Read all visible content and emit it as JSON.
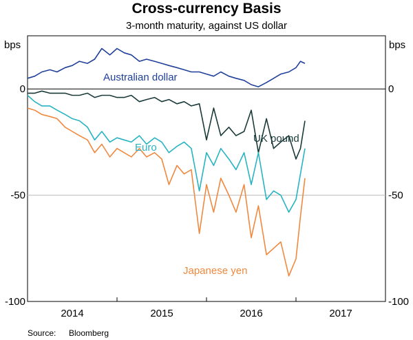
{
  "chart_data": {
    "type": "line",
    "title": "Cross-currency Basis",
    "subtitle": "3-month maturity, against US dollar",
    "ylabel_left": "bps",
    "ylabel_right": "bps",
    "ylim": [
      -100,
      25
    ],
    "yticks": [
      0,
      -50,
      -100
    ],
    "xlim": [
      2013.5,
      2017.5
    ],
    "xticks": [
      "2014",
      "2015",
      "2016",
      "2017"
    ],
    "grid": "horizontal",
    "source_label": "Source:",
    "source": "Bloomberg",
    "series": [
      {
        "name": "Australian dollar",
        "color": "#1f3f9a",
        "x": [
          2013.5,
          2013.58,
          2013.66,
          2013.75,
          2013.83,
          2013.92,
          2014.0,
          2014.08,
          2014.17,
          2014.25,
          2014.33,
          2014.42,
          2014.5,
          2014.58,
          2014.66,
          2014.75,
          2014.83,
          2014.92,
          2015.0,
          2015.08,
          2015.17,
          2015.25,
          2015.33,
          2015.42,
          2015.5,
          2015.58,
          2015.66,
          2015.75,
          2015.83,
          2015.92,
          2016.0,
          2016.08,
          2016.17,
          2016.25,
          2016.33,
          2016.42,
          2016.5,
          2016.55,
          2016.6
        ],
        "values": [
          5,
          6,
          8,
          9,
          8,
          10,
          11,
          13,
          12,
          14,
          19,
          16,
          19,
          17,
          16,
          13,
          14,
          13,
          12,
          11,
          10,
          9,
          8,
          8,
          7,
          6,
          8,
          6,
          5,
          4,
          2,
          1,
          3,
          5,
          7,
          8,
          10,
          13,
          12
        ]
      },
      {
        "name": "UK pound",
        "color": "#1a3a3a",
        "x": [
          2013.5,
          2013.58,
          2013.66,
          2013.75,
          2013.83,
          2013.92,
          2014.0,
          2014.08,
          2014.17,
          2014.25,
          2014.33,
          2014.42,
          2014.5,
          2014.58,
          2014.66,
          2014.75,
          2014.83,
          2014.92,
          2015.0,
          2015.08,
          2015.17,
          2015.25,
          2015.33,
          2015.42,
          2015.5,
          2015.58,
          2015.66,
          2015.75,
          2015.83,
          2015.92,
          2016.0,
          2016.08,
          2016.17,
          2016.25,
          2016.33,
          2016.42,
          2016.5,
          2016.55,
          2016.6
        ],
        "values": [
          -2,
          -2,
          -1,
          -2,
          -2,
          -2,
          -3,
          -3,
          -2,
          -4,
          -3,
          -3,
          -4,
          -4,
          -3,
          -6,
          -5,
          -4,
          -6,
          -5,
          -7,
          -6,
          -8,
          -7,
          -24,
          -9,
          -22,
          -18,
          -22,
          -20,
          -10,
          -30,
          -14,
          -28,
          -25,
          -22,
          -33,
          -28,
          -15
        ]
      },
      {
        "name": "Euro",
        "color": "#27b3c2",
        "x": [
          2013.5,
          2013.58,
          2013.66,
          2013.75,
          2013.83,
          2013.92,
          2014.0,
          2014.08,
          2014.17,
          2014.25,
          2014.33,
          2014.42,
          2014.5,
          2014.58,
          2014.66,
          2014.75,
          2014.83,
          2014.92,
          2015.0,
          2015.08,
          2015.17,
          2015.25,
          2015.33,
          2015.42,
          2015.5,
          2015.58,
          2015.66,
          2015.75,
          2015.83,
          2015.92,
          2016.0,
          2016.08,
          2016.17,
          2016.25,
          2016.33,
          2016.42,
          2016.5,
          2016.55,
          2016.6
        ],
        "values": [
          -3,
          -6,
          -8,
          -8,
          -10,
          -12,
          -14,
          -15,
          -18,
          -24,
          -20,
          -25,
          -23,
          -24,
          -25,
          -22,
          -26,
          -23,
          -25,
          -30,
          -27,
          -25,
          -28,
          -48,
          -30,
          -36,
          -28,
          -33,
          -38,
          -30,
          -45,
          -30,
          -52,
          -48,
          -50,
          -58,
          -52,
          -40,
          -28
        ]
      },
      {
        "name": "Japanese yen",
        "color": "#f0883e",
        "x": [
          2013.5,
          2013.58,
          2013.66,
          2013.75,
          2013.83,
          2013.92,
          2014.0,
          2014.08,
          2014.17,
          2014.25,
          2014.33,
          2014.42,
          2014.5,
          2014.58,
          2014.66,
          2014.75,
          2014.83,
          2014.92,
          2015.0,
          2015.08,
          2015.17,
          2015.25,
          2015.33,
          2015.42,
          2015.5,
          2015.58,
          2015.66,
          2015.75,
          2015.83,
          2015.92,
          2016.0,
          2016.08,
          2016.17,
          2016.25,
          2016.33,
          2016.42,
          2016.5,
          2016.55,
          2016.6
        ],
        "values": [
          -9,
          -10,
          -12,
          -13,
          -14,
          -18,
          -20,
          -22,
          -24,
          -30,
          -26,
          -32,
          -28,
          -30,
          -32,
          -28,
          -32,
          -30,
          -33,
          -45,
          -36,
          -40,
          -38,
          -68,
          -45,
          -58,
          -42,
          -50,
          -58,
          -45,
          -70,
          -55,
          -78,
          -75,
          -72,
          -88,
          -80,
          -60,
          -42
        ]
      }
    ],
    "annotations": [
      {
        "series": 0,
        "text": "Australian dollar"
      },
      {
        "series": 1,
        "text": "UK pound"
      },
      {
        "series": 2,
        "text": "Euro"
      },
      {
        "series": 3,
        "text": "Japanese yen"
      }
    ]
  }
}
